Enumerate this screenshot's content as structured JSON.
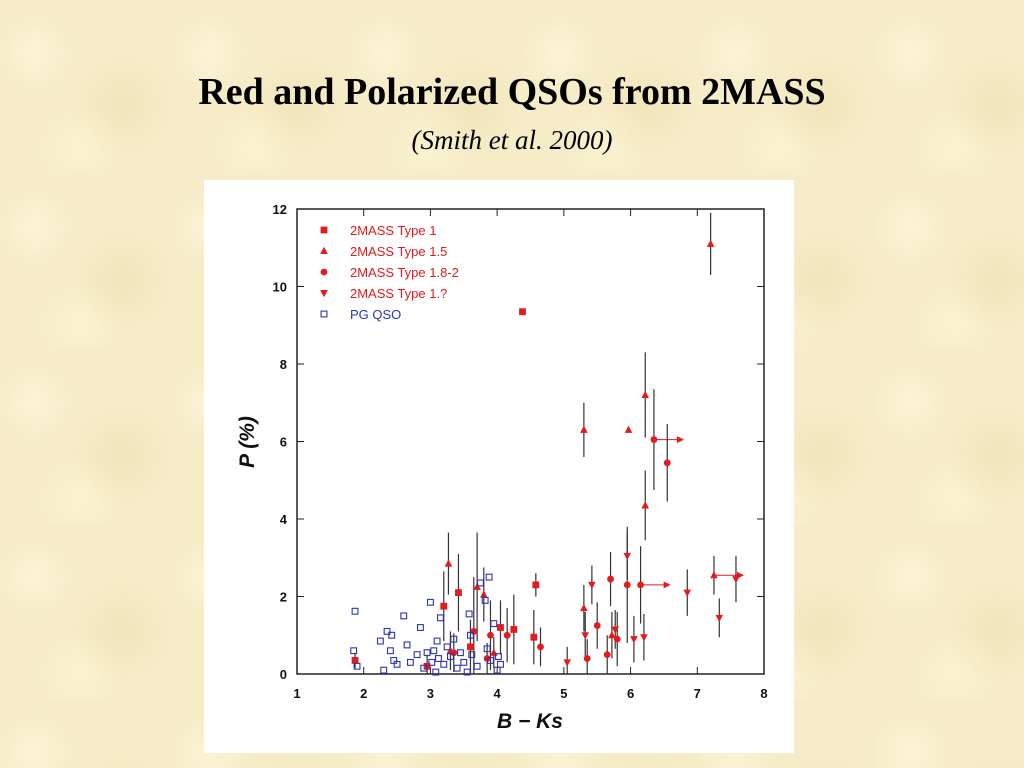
{
  "slide": {
    "title": "Red and Polarized QSOs from 2MASS",
    "subtitle": "(Smith et al. 2000)"
  },
  "colors": {
    "red": "#e41a1c",
    "blue": "#2b34b4",
    "errorbar": "#333333"
  },
  "chart_data": {
    "type": "scatter",
    "xlabel": "B − Ks",
    "ylabel": "P (%)",
    "xlim": [
      1,
      8
    ],
    "ylim": [
      0,
      12
    ],
    "xticks": [
      1,
      2,
      3,
      4,
      5,
      6,
      7,
      8
    ],
    "yticks": [
      0,
      2,
      4,
      6,
      8,
      10,
      12
    ],
    "legend_position": "top-left",
    "grid": false,
    "series": [
      {
        "name": "2MASS Type 1",
        "marker": "square",
        "color": "#e41a1c",
        "points": [
          {
            "x": 4.38,
            "y": 9.35
          },
          {
            "x": 4.58,
            "y": 2.3,
            "err": 0.3
          },
          {
            "x": 3.2,
            "y": 1.75,
            "err": 0.9
          },
          {
            "x": 3.42,
            "y": 2.1,
            "err": 1.0
          },
          {
            "x": 4.05,
            "y": 1.2,
            "err": 0.7
          },
          {
            "x": 4.25,
            "y": 1.15,
            "err": 0.9
          },
          {
            "x": 4.55,
            "y": 0.95,
            "err": 0.7
          },
          {
            "x": 3.6,
            "y": 0.7,
            "err": 0.7
          },
          {
            "x": 1.87,
            "y": 0.35,
            "err": 0.2
          },
          {
            "x": 2.95,
            "y": 0.2,
            "err": 0.3
          }
        ]
      },
      {
        "name": "2MASS Type 1.5",
        "marker": "triangle-up",
        "color": "#e41a1c",
        "points": [
          {
            "x": 7.2,
            "y": 11.1,
            "err": 0.8
          },
          {
            "x": 5.3,
            "y": 6.3,
            "err": 0.7
          },
          {
            "x": 5.97,
            "y": 6.3
          },
          {
            "x": 6.22,
            "y": 7.2,
            "err": 1.1
          },
          {
            "x": 6.22,
            "y": 4.35,
            "err": 0.9
          },
          {
            "x": 3.27,
            "y": 2.85,
            "err": 0.8
          },
          {
            "x": 3.7,
            "y": 2.25,
            "err": 1.4
          },
          {
            "x": 3.8,
            "y": 2.05,
            "err": 0.7
          },
          {
            "x": 7.25,
            "y": 2.55,
            "err": 0.5,
            "arrow": true
          },
          {
            "x": 5.3,
            "y": 1.7,
            "err": 0.6
          },
          {
            "x": 5.72,
            "y": 1.0,
            "err": 0.6
          },
          {
            "x": 3.95,
            "y": 0.55,
            "err": 0.4
          },
          {
            "x": 3.3,
            "y": 0.6,
            "err": 0.5
          }
        ]
      },
      {
        "name": "2MASS Type 1.8-2",
        "marker": "circle",
        "color": "#e41a1c",
        "points": [
          {
            "x": 6.35,
            "y": 6.05,
            "err": 1.3,
            "arrow": true
          },
          {
            "x": 6.55,
            "y": 5.45,
            "err": 1.0
          },
          {
            "x": 5.95,
            "y": 2.3,
            "err": 1.5
          },
          {
            "x": 5.7,
            "y": 2.45,
            "err": 0.7
          },
          {
            "x": 6.15,
            "y": 2.3,
            "err": 1.0,
            "arrow": true
          },
          {
            "x": 3.65,
            "y": 1.1,
            "err": 1.4
          },
          {
            "x": 3.9,
            "y": 1.0,
            "err": 0.9
          },
          {
            "x": 4.15,
            "y": 1.0,
            "err": 0.7
          },
          {
            "x": 4.65,
            "y": 0.7,
            "err": 0.5
          },
          {
            "x": 5.5,
            "y": 1.25,
            "err": 0.6
          },
          {
            "x": 5.8,
            "y": 0.9,
            "err": 0.7
          },
          {
            "x": 5.35,
            "y": 0.4,
            "err": 0.5
          },
          {
            "x": 5.65,
            "y": 0.5,
            "err": 0.5
          },
          {
            "x": 3.85,
            "y": 0.4,
            "err": 0.4
          },
          {
            "x": 3.35,
            "y": 0.55,
            "err": 0.5
          }
        ]
      },
      {
        "name": "2MASS Type 1.?",
        "marker": "triangle-down",
        "color": "#e41a1c",
        "points": [
          {
            "x": 5.95,
            "y": 3.05,
            "err": 0.6
          },
          {
            "x": 5.42,
            "y": 2.3,
            "err": 0.5
          },
          {
            "x": 6.85,
            "y": 2.1,
            "err": 0.6
          },
          {
            "x": 7.58,
            "y": 2.45,
            "err": 0.6
          },
          {
            "x": 7.33,
            "y": 1.45,
            "err": 0.5
          },
          {
            "x": 6.2,
            "y": 0.95,
            "err": 0.6
          },
          {
            "x": 6.05,
            "y": 0.9,
            "err": 0.6
          },
          {
            "x": 5.32,
            "y": 1.0,
            "err": 0.6
          },
          {
            "x": 5.77,
            "y": 1.15,
            "err": 0.5
          },
          {
            "x": 5.05,
            "y": 0.3,
            "err": 0.4
          }
        ]
      },
      {
        "name": "PG QSO",
        "marker": "open-square",
        "color": "#2b34b4",
        "points": [
          {
            "x": 1.87,
            "y": 1.62
          },
          {
            "x": 1.85,
            "y": 0.6
          },
          {
            "x": 1.9,
            "y": 0.2
          },
          {
            "x": 2.25,
            "y": 0.85
          },
          {
            "x": 2.35,
            "y": 1.1
          },
          {
            "x": 2.4,
            "y": 0.6
          },
          {
            "x": 2.42,
            "y": 1.0
          },
          {
            "x": 2.45,
            "y": 0.35
          },
          {
            "x": 2.5,
            "y": 0.25
          },
          {
            "x": 2.6,
            "y": 1.5
          },
          {
            "x": 2.65,
            "y": 0.75
          },
          {
            "x": 2.7,
            "y": 0.3
          },
          {
            "x": 2.8,
            "y": 0.5
          },
          {
            "x": 2.85,
            "y": 1.2
          },
          {
            "x": 2.9,
            "y": 0.15
          },
          {
            "x": 2.95,
            "y": 0.55
          },
          {
            "x": 3.0,
            "y": 1.85
          },
          {
            "x": 3.02,
            "y": 0.3
          },
          {
            "x": 3.05,
            "y": 0.6
          },
          {
            "x": 3.08,
            "y": 0.05
          },
          {
            "x": 3.1,
            "y": 0.85
          },
          {
            "x": 3.12,
            "y": 0.4
          },
          {
            "x": 3.15,
            "y": 1.45
          },
          {
            "x": 3.2,
            "y": 0.25
          },
          {
            "x": 3.25,
            "y": 0.7
          },
          {
            "x": 3.3,
            "y": 0.45
          },
          {
            "x": 3.35,
            "y": 0.9
          },
          {
            "x": 3.4,
            "y": 0.15
          },
          {
            "x": 3.45,
            "y": 0.55
          },
          {
            "x": 3.5,
            "y": 0.3
          },
          {
            "x": 3.55,
            "y": 0.05
          },
          {
            "x": 3.6,
            "y": 1.0
          },
          {
            "x": 3.62,
            "y": 0.5
          },
          {
            "x": 3.7,
            "y": 0.2
          },
          {
            "x": 3.75,
            "y": 2.35
          },
          {
            "x": 3.82,
            "y": 1.9
          },
          {
            "x": 3.85,
            "y": 0.65
          },
          {
            "x": 3.88,
            "y": 2.5
          },
          {
            "x": 3.9,
            "y": 0.35
          },
          {
            "x": 3.95,
            "y": 1.3
          },
          {
            "x": 4.0,
            "y": 0.1
          },
          {
            "x": 4.02,
            "y": 0.45
          },
          {
            "x": 4.05,
            "y": 0.25
          },
          {
            "x": 3.58,
            "y": 1.55
          },
          {
            "x": 2.3,
            "y": 0.1
          }
        ]
      }
    ]
  }
}
